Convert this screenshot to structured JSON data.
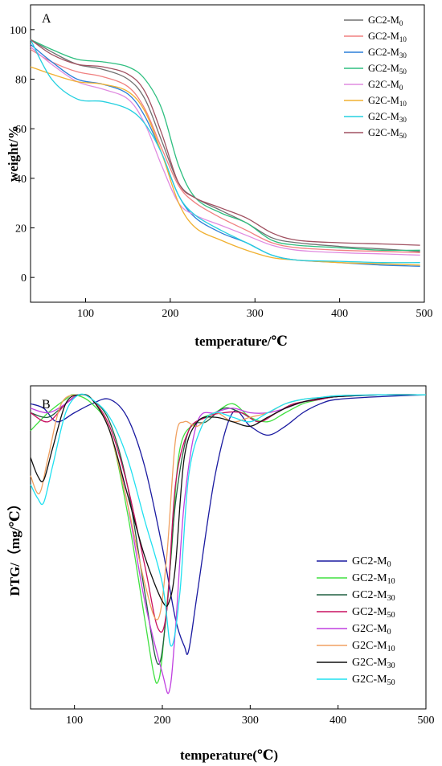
{
  "chart_data": [
    {
      "type": "line",
      "panel_label": "A",
      "xlabel": "temperature/℃",
      "ylabel": "weight/%",
      "xlim": [
        35,
        500
      ],
      "ylim": [
        -10,
        110
      ],
      "xticks": [
        100,
        200,
        300,
        400,
        500
      ],
      "yticks": [
        0,
        20,
        40,
        60,
        80,
        100
      ],
      "grid": false,
      "legend_position": "top-right",
      "series": [
        {
          "base": "GC2-M",
          "sub": "0",
          "color": "#707070",
          "x": [
            35,
            60,
            90,
            120,
            150,
            170,
            190,
            210,
            230,
            260,
            290,
            320,
            350,
            400,
            450,
            495
          ],
          "y": [
            96,
            91,
            86,
            84,
            80,
            72,
            55,
            38,
            32,
            27,
            22,
            16,
            14,
            12.5,
            11.5,
            10.5
          ]
        },
        {
          "base": "GC2-M",
          "sub": "10",
          "color": "#f08080",
          "x": [
            35,
            60,
            90,
            120,
            150,
            170,
            190,
            210,
            230,
            260,
            290,
            320,
            350,
            400,
            450,
            495
          ],
          "y": [
            92,
            87,
            83,
            81,
            77,
            68,
            52,
            37,
            30,
            24,
            19,
            14,
            12,
            11,
            10.5,
            10
          ]
        },
        {
          "base": "GC2-M",
          "sub": "30",
          "color": "#2b7fd8",
          "x": [
            35,
            60,
            90,
            120,
            150,
            170,
            190,
            210,
            230,
            260,
            290,
            320,
            350,
            400,
            450,
            495
          ],
          "y": [
            94,
            87,
            80,
            78,
            74,
            65,
            50,
            33,
            24,
            18,
            14,
            9,
            7,
            6,
            5,
            4.5
          ]
        },
        {
          "base": "GC2-M",
          "sub": "50",
          "color": "#2fbf80",
          "x": [
            35,
            60,
            90,
            120,
            150,
            170,
            190,
            210,
            230,
            260,
            290,
            320,
            350,
            400,
            450,
            495
          ],
          "y": [
            96,
            92,
            88,
            87,
            85,
            80,
            68,
            45,
            32,
            26,
            22,
            15,
            13,
            12,
            11,
            11
          ]
        },
        {
          "base": "G2C-M",
          "sub": "0",
          "color": "#e08be0",
          "x": [
            35,
            60,
            90,
            120,
            150,
            170,
            190,
            210,
            230,
            260,
            290,
            320,
            350,
            400,
            450,
            495
          ],
          "y": [
            93,
            86,
            79,
            76,
            72,
            62,
            45,
            30,
            25,
            21,
            17,
            13,
            11,
            10,
            9.5,
            9
          ]
        },
        {
          "base": "G2C-M",
          "sub": "10",
          "color": "#f0b030",
          "x": [
            35,
            60,
            90,
            120,
            150,
            170,
            190,
            210,
            230,
            260,
            290,
            320,
            350,
            400,
            450,
            495
          ],
          "y": [
            85,
            82,
            79,
            78,
            75,
            67,
            50,
            30,
            20,
            15,
            11,
            8,
            7,
            6,
            5.5,
            5
          ]
        },
        {
          "base": "G2C-M",
          "sub": "30",
          "color": "#25d0e0",
          "x": [
            35,
            60,
            90,
            120,
            150,
            170,
            190,
            210,
            230,
            260,
            290,
            320,
            350,
            400,
            450,
            495
          ],
          "y": [
            96,
            80,
            72,
            71,
            68,
            62,
            50,
            33,
            25,
            19,
            14,
            9,
            7,
            6.5,
            6,
            6
          ]
        },
        {
          "base": "G2C-M",
          "sub": "50",
          "color": "#a05060",
          "x": [
            35,
            60,
            90,
            120,
            150,
            170,
            190,
            210,
            230,
            260,
            290,
            320,
            350,
            400,
            450,
            495
          ],
          "y": [
            96,
            90,
            86,
            85,
            82,
            75,
            58,
            38,
            32,
            28,
            24,
            18,
            15,
            14,
            13.5,
            13
          ]
        }
      ]
    },
    {
      "type": "line",
      "panel_label": "B",
      "xlabel": "temperature(℃)",
      "ylabel": "DTG/（mg/℃）",
      "xlim": [
        50,
        500
      ],
      "ylim": [
        -3.5,
        0.1
      ],
      "xticks": [
        100,
        200,
        300,
        400,
        500
      ],
      "yticks": [],
      "grid": false,
      "legend_position": "bottom-right",
      "series": [
        {
          "base": "GC2-M",
          "sub": "0",
          "color": "#1a1aa0",
          "x": [
            50,
            65,
            80,
            100,
            120,
            140,
            160,
            180,
            200,
            215,
            225,
            230,
            240,
            260,
            280,
            300,
            320,
            340,
            360,
            380,
            400,
            450,
            500
          ],
          "y": [
            -0.1,
            -0.15,
            -0.3,
            -0.2,
            -0.1,
            -0.05,
            -0.25,
            -0.8,
            -1.7,
            -2.5,
            -2.8,
            -2.85,
            -2.2,
            -0.9,
            -0.2,
            -0.35,
            -0.45,
            -0.35,
            -0.2,
            -0.1,
            -0.05,
            -0.02,
            0
          ]
        },
        {
          "base": "GC2-M",
          "sub": "10",
          "color": "#40e040",
          "x": [
            50,
            70,
            90,
            100,
            120,
            140,
            160,
            180,
            190,
            195,
            200,
            210,
            220,
            240,
            260,
            280,
            300,
            320,
            340,
            360,
            380,
            400,
            450,
            500
          ],
          "y": [
            -0.4,
            -0.2,
            -0.05,
            0,
            -0.1,
            -0.4,
            -1.3,
            -2.5,
            -3.1,
            -3.2,
            -2.9,
            -1.8,
            -0.6,
            -0.3,
            -0.2,
            -0.1,
            -0.25,
            -0.3,
            -0.2,
            -0.1,
            -0.05,
            -0.02,
            0,
            0
          ]
        },
        {
          "base": "GC2-M",
          "sub": "30",
          "color": "#206040",
          "x": [
            50,
            70,
            90,
            105,
            120,
            140,
            160,
            180,
            195,
            205,
            215,
            230,
            250,
            270,
            290,
            310,
            330,
            350,
            380,
            400,
            450,
            500
          ],
          "y": [
            -0.2,
            -0.25,
            -0.1,
            0,
            -0.05,
            -0.3,
            -1.0,
            -2.2,
            -3.0,
            -2.4,
            -1.2,
            -0.4,
            -0.3,
            -0.15,
            -0.2,
            -0.3,
            -0.2,
            -0.1,
            -0.05,
            -0.02,
            0,
            0
          ]
        },
        {
          "base": "GC2-M",
          "sub": "50",
          "color": "#c81060",
          "x": [
            50,
            70,
            90,
            105,
            120,
            140,
            160,
            180,
            195,
            205,
            215,
            230,
            250,
            270,
            290,
            310,
            330,
            350,
            380,
            400,
            450,
            500
          ],
          "y": [
            -0.2,
            -0.3,
            -0.1,
            0,
            -0.05,
            -0.35,
            -1.0,
            -1.9,
            -2.6,
            -2.4,
            -1.0,
            -0.4,
            -0.25,
            -0.2,
            -0.2,
            -0.3,
            -0.2,
            -0.1,
            -0.05,
            -0.02,
            0,
            0
          ]
        },
        {
          "base": "G2C-M",
          "sub": "0",
          "color": "#c040e0",
          "x": [
            50,
            70,
            90,
            105,
            120,
            140,
            160,
            180,
            200,
            208,
            215,
            225,
            240,
            260,
            280,
            300,
            320,
            340,
            360,
            380,
            400,
            450,
            500
          ],
          "y": [
            -0.15,
            -0.2,
            -0.1,
            0,
            -0.05,
            -0.4,
            -1.2,
            -2.3,
            -3.1,
            -3.3,
            -2.6,
            -1.2,
            -0.3,
            -0.2,
            -0.15,
            -0.2,
            -0.2,
            -0.15,
            -0.08,
            -0.04,
            -0.02,
            0,
            0
          ]
        },
        {
          "base": "G2C-M",
          "sub": "10",
          "color": "#f0a060",
          "x": [
            50,
            60,
            70,
            85,
            105,
            120,
            140,
            160,
            180,
            195,
            205,
            215,
            225,
            240,
            260,
            280,
            300,
            320,
            340,
            360,
            380,
            400,
            450,
            500
          ],
          "y": [
            -0.9,
            -1.1,
            -0.7,
            -0.1,
            0,
            -0.05,
            -0.4,
            -1.2,
            -2.1,
            -2.5,
            -1.8,
            -0.5,
            -0.3,
            -0.35,
            -0.2,
            -0.3,
            -0.25,
            -0.2,
            -0.1,
            -0.05,
            -0.03,
            -0.01,
            0,
            0
          ]
        },
        {
          "base": "G2C-M",
          "sub": "30",
          "color": "#101010",
          "x": [
            50,
            58,
            65,
            75,
            90,
            105,
            120,
            140,
            160,
            180,
            200,
            208,
            215,
            225,
            240,
            260,
            280,
            300,
            320,
            340,
            360,
            380,
            400,
            450,
            500
          ],
          "y": [
            -0.7,
            -0.9,
            -0.95,
            -0.6,
            -0.1,
            0,
            -0.05,
            -0.4,
            -1.1,
            -1.8,
            -2.3,
            -2.3,
            -1.9,
            -0.7,
            -0.3,
            -0.25,
            -0.3,
            -0.35,
            -0.25,
            -0.15,
            -0.08,
            -0.04,
            -0.02,
            0,
            0
          ]
        },
        {
          "base": "G2C-M",
          "sub": "50",
          "color": "#20e0f0",
          "x": [
            50,
            58,
            65,
            75,
            90,
            105,
            120,
            140,
            160,
            180,
            200,
            210,
            220,
            230,
            245,
            260,
            280,
            300,
            320,
            340,
            360,
            380,
            400,
            450,
            500
          ],
          "y": [
            -1.0,
            -1.15,
            -1.2,
            -0.8,
            -0.2,
            0,
            -0.05,
            -0.25,
            -0.7,
            -1.4,
            -2.1,
            -2.8,
            -2.2,
            -0.9,
            -0.35,
            -0.2,
            -0.25,
            -0.3,
            -0.2,
            -0.1,
            -0.05,
            -0.03,
            -0.01,
            0,
            0
          ]
        }
      ]
    }
  ]
}
